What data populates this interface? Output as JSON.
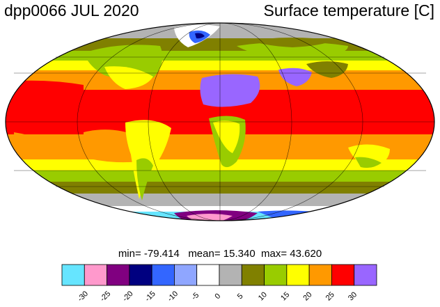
{
  "header": {
    "left_title": "dpp0066 JUL 2020",
    "right_title": "Surface temperature [C]"
  },
  "stats": {
    "min_label": "min=",
    "min": "-79.414",
    "mean_label": "mean=",
    "mean": "15.340",
    "max_label": "max=",
    "max": "43.620"
  },
  "map": {
    "projection": "mollweide",
    "variable": "surface temperature",
    "units": "C",
    "grid": true,
    "coastlines": true
  },
  "colorbar": {
    "bins": [
      {
        "color": "#66e5ff"
      },
      {
        "color": "#ff99cc"
      },
      {
        "color": "#800080"
      },
      {
        "color": "#000080"
      },
      {
        "color": "#3366ff"
      },
      {
        "color": "#8fa6ff"
      },
      {
        "color": "#ffffff"
      },
      {
        "color": "#b3b3b3"
      },
      {
        "color": "#808000"
      },
      {
        "color": "#99cc00"
      },
      {
        "color": "#ffff00"
      },
      {
        "color": "#ff9900"
      },
      {
        "color": "#ff0000"
      },
      {
        "color": "#9966ff"
      }
    ],
    "tick_labels": [
      "-30",
      "-25",
      "-20",
      "-15",
      "-10",
      "-5",
      "0",
      "5",
      "10",
      "15",
      "20",
      "25",
      "30"
    ]
  }
}
